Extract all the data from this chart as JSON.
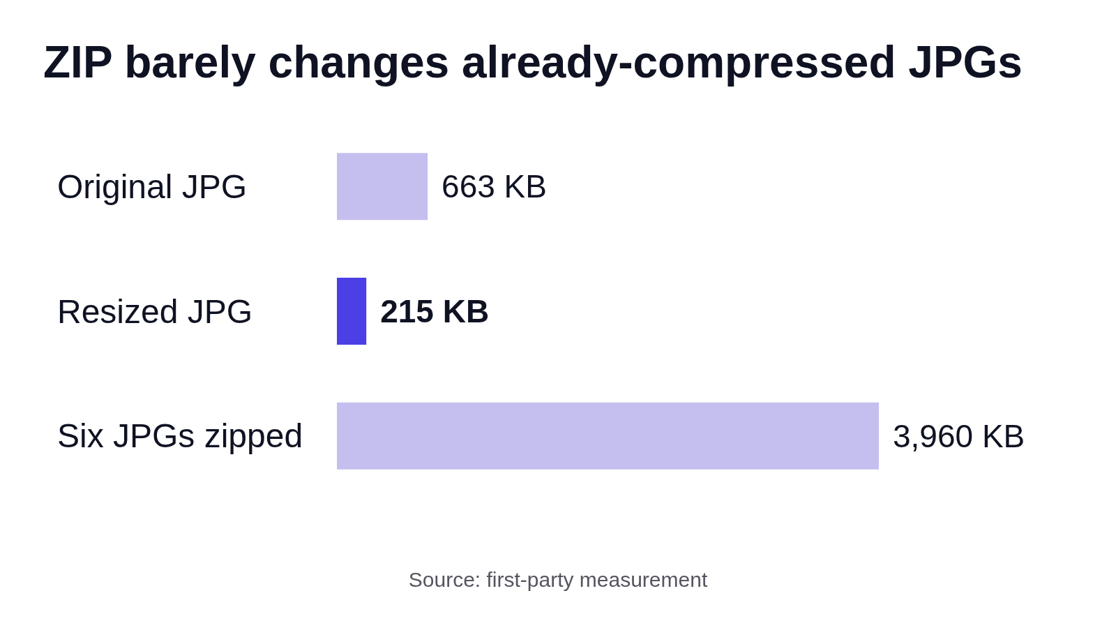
{
  "chart_data": {
    "type": "bar",
    "orientation": "horizontal",
    "title": "ZIP barely changes already-compressed JPGs",
    "categories": [
      "Original JPG",
      "Resized JPG",
      "Six JPGs zipped"
    ],
    "values": [
      663,
      215,
      3960
    ],
    "colors": [
      "#c4bfee",
      "#4b3fe6",
      "#c4bfee"
    ],
    "value_labels": [
      "663 KB",
      "215 KB",
      "3,960 KB"
    ],
    "annotations": [
      "Source: first-party measurement"
    ]
  }
}
